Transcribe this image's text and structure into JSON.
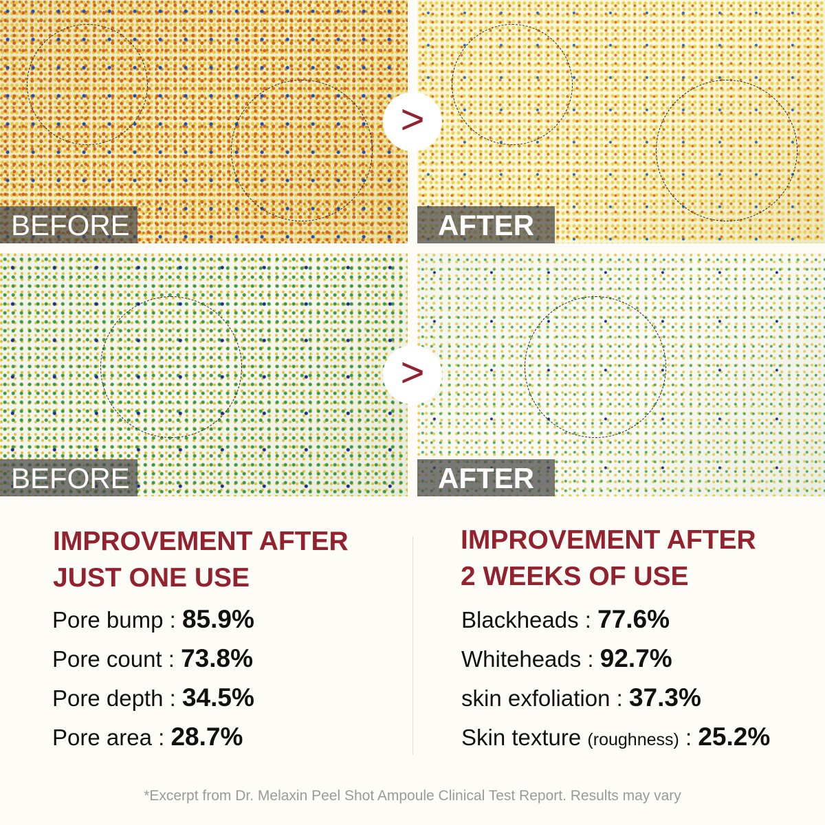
{
  "panels": {
    "top_before_label": "BEFORE",
    "top_after_label": "AFTER",
    "bottom_before_label": "BEFORE",
    "bottom_after_label": "AFTER",
    "arrow_icon": "chevron-right-icon",
    "arrow_glyph": ">"
  },
  "colors": {
    "accent": "#93222f",
    "background": "#fdfcf7"
  },
  "left": {
    "heading_line1": "IMPROVEMENT AFTER",
    "heading_line2": "JUST ONE USE",
    "stats": [
      {
        "label": "Pore bump : ",
        "value": "85.9%"
      },
      {
        "label": "Pore count : ",
        "value": "73.8%"
      },
      {
        "label": "Pore depth : ",
        "value": "34.5%"
      },
      {
        "label": "Pore area : ",
        "value": "28.7%"
      }
    ]
  },
  "right": {
    "heading_line1": "IMPROVEMENT AFTER",
    "heading_line2": "2 WEEKS OF USE",
    "stats": [
      {
        "label": "Blackheads : ",
        "value": "77.6%"
      },
      {
        "label": "Whiteheads : ",
        "value": "92.7%"
      },
      {
        "label": "skin exfoliation : ",
        "value": "37.3%"
      },
      {
        "label": "Skin texture ",
        "note": "(roughness)",
        "label_after": " : ",
        "value": "25.2%"
      }
    ]
  },
  "footnote": "*Excerpt from Dr. Melaxin Peel Shot Ampoule Clinical Test Report. Results may vary"
}
